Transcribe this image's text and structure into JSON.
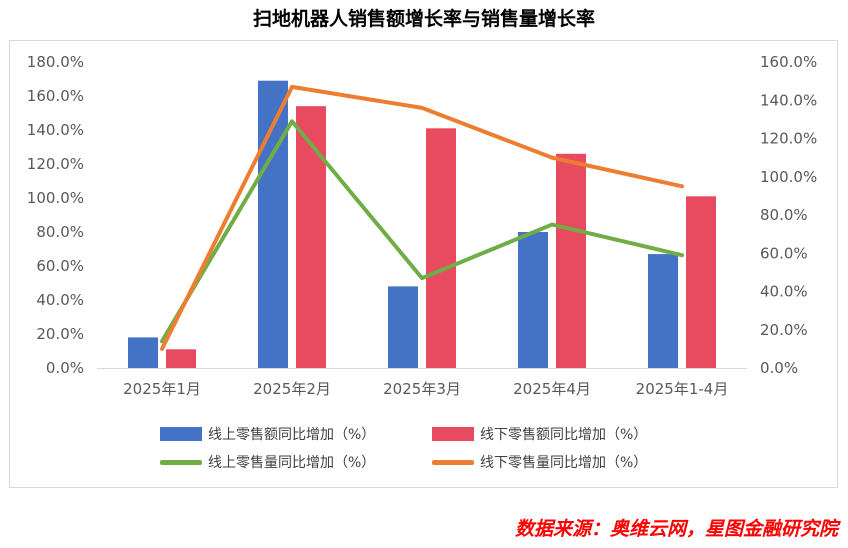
{
  "title": "扫地机器人销售额增长率与销售量增长率",
  "source": "数据来源：奥维云网，星图金融研究院",
  "chart_data": {
    "type": "bar",
    "categories": [
      "2025年1月",
      "2025年2月",
      "2025年3月",
      "2025年4月",
      "2025年1-4月"
    ],
    "left_axis": {
      "ylim": [
        0,
        180
      ],
      "ticks": [
        "0.0%",
        "20.0%",
        "40.0%",
        "60.0%",
        "80.0%",
        "100.0%",
        "120.0%",
        "140.0%",
        "160.0%",
        "180.0%"
      ]
    },
    "right_axis": {
      "ylim": [
        0,
        160
      ],
      "ticks": [
        "0.0%",
        "20.0%",
        "40.0%",
        "60.0%",
        "80.0%",
        "100.0%",
        "120.0%",
        "140.0%",
        "160.0%"
      ]
    },
    "grid": false,
    "legend_position": "bottom",
    "series": [
      {
        "name": "线上零售额同比增加（%）",
        "type": "bar",
        "axis": "left",
        "color": "#4472c4",
        "values": [
          18,
          169,
          48,
          80,
          67
        ]
      },
      {
        "name": "线下零售额同比增加（%）",
        "type": "bar",
        "axis": "left",
        "color": "#e84a5f",
        "values": [
          11,
          154,
          141,
          126,
          101
        ]
      },
      {
        "name": "线上零售量同比增加（%）",
        "type": "line",
        "axis": "right",
        "color": "#70ad47",
        "values": [
          14,
          129,
          47,
          75,
          59
        ]
      },
      {
        "name": "线下零售量同比增加（%）",
        "type": "line",
        "axis": "right",
        "color": "#ed7d31",
        "values": [
          10,
          147,
          136,
          110,
          95
        ]
      }
    ]
  }
}
